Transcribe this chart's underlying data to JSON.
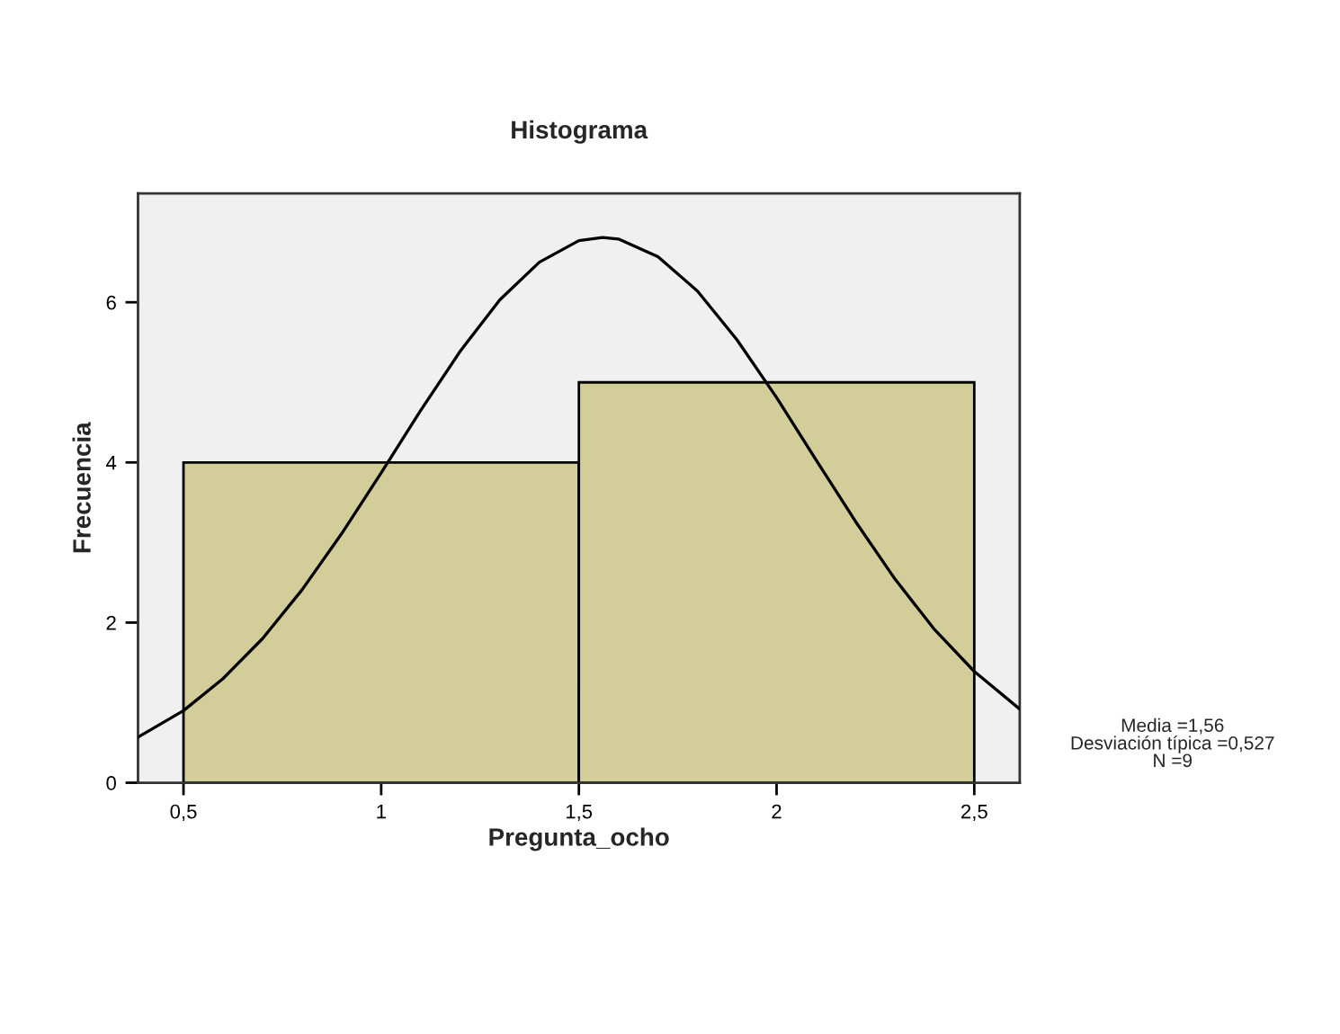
{
  "chart_data": {
    "type": "histogram",
    "title": "Histograma",
    "xlabel": "Pregunta_ocho",
    "ylabel": "Frecuencia",
    "bins": [
      0.5,
      1.5,
      2.5
    ],
    "values": [
      4,
      5
    ],
    "color": "#d3ce99",
    "series": [
      {
        "type": "line",
        "color": "#000000",
        "x": [
          0.385,
          0.5,
          0.6,
          0.7,
          0.8,
          0.9,
          1.0,
          1.1,
          1.2,
          1.3,
          1.4,
          1.5,
          1.56,
          1.6,
          1.7,
          1.8,
          1.9,
          2.0,
          2.1,
          2.2,
          2.3,
          2.4,
          2.5,
          2.615
        ],
        "values": [
          0.57,
          0.9,
          1.3,
          1.8,
          2.41,
          3.11,
          3.87,
          4.65,
          5.39,
          6.03,
          6.5,
          6.77,
          6.81,
          6.79,
          6.57,
          6.14,
          5.53,
          4.81,
          4.03,
          3.26,
          2.54,
          1.91,
          1.39,
          0.92
        ]
      }
    ],
    "xlim": [
      0.385,
      2.615
    ],
    "ylim": [
      0,
      7.36
    ],
    "xticks": [
      {
        "value": 0.5,
        "label": "0,5"
      },
      1,
      {
        "value": 1.5,
        "label": "1,5"
      },
      2,
      {
        "value": 2.5,
        "label": "2,5"
      }
    ],
    "yticks": [
      0,
      2,
      4,
      6
    ],
    "annotations": [
      "Media =1,56",
      "Desviación típica =0,527",
      "N =9"
    ],
    "grid": false,
    "legend": false
  }
}
